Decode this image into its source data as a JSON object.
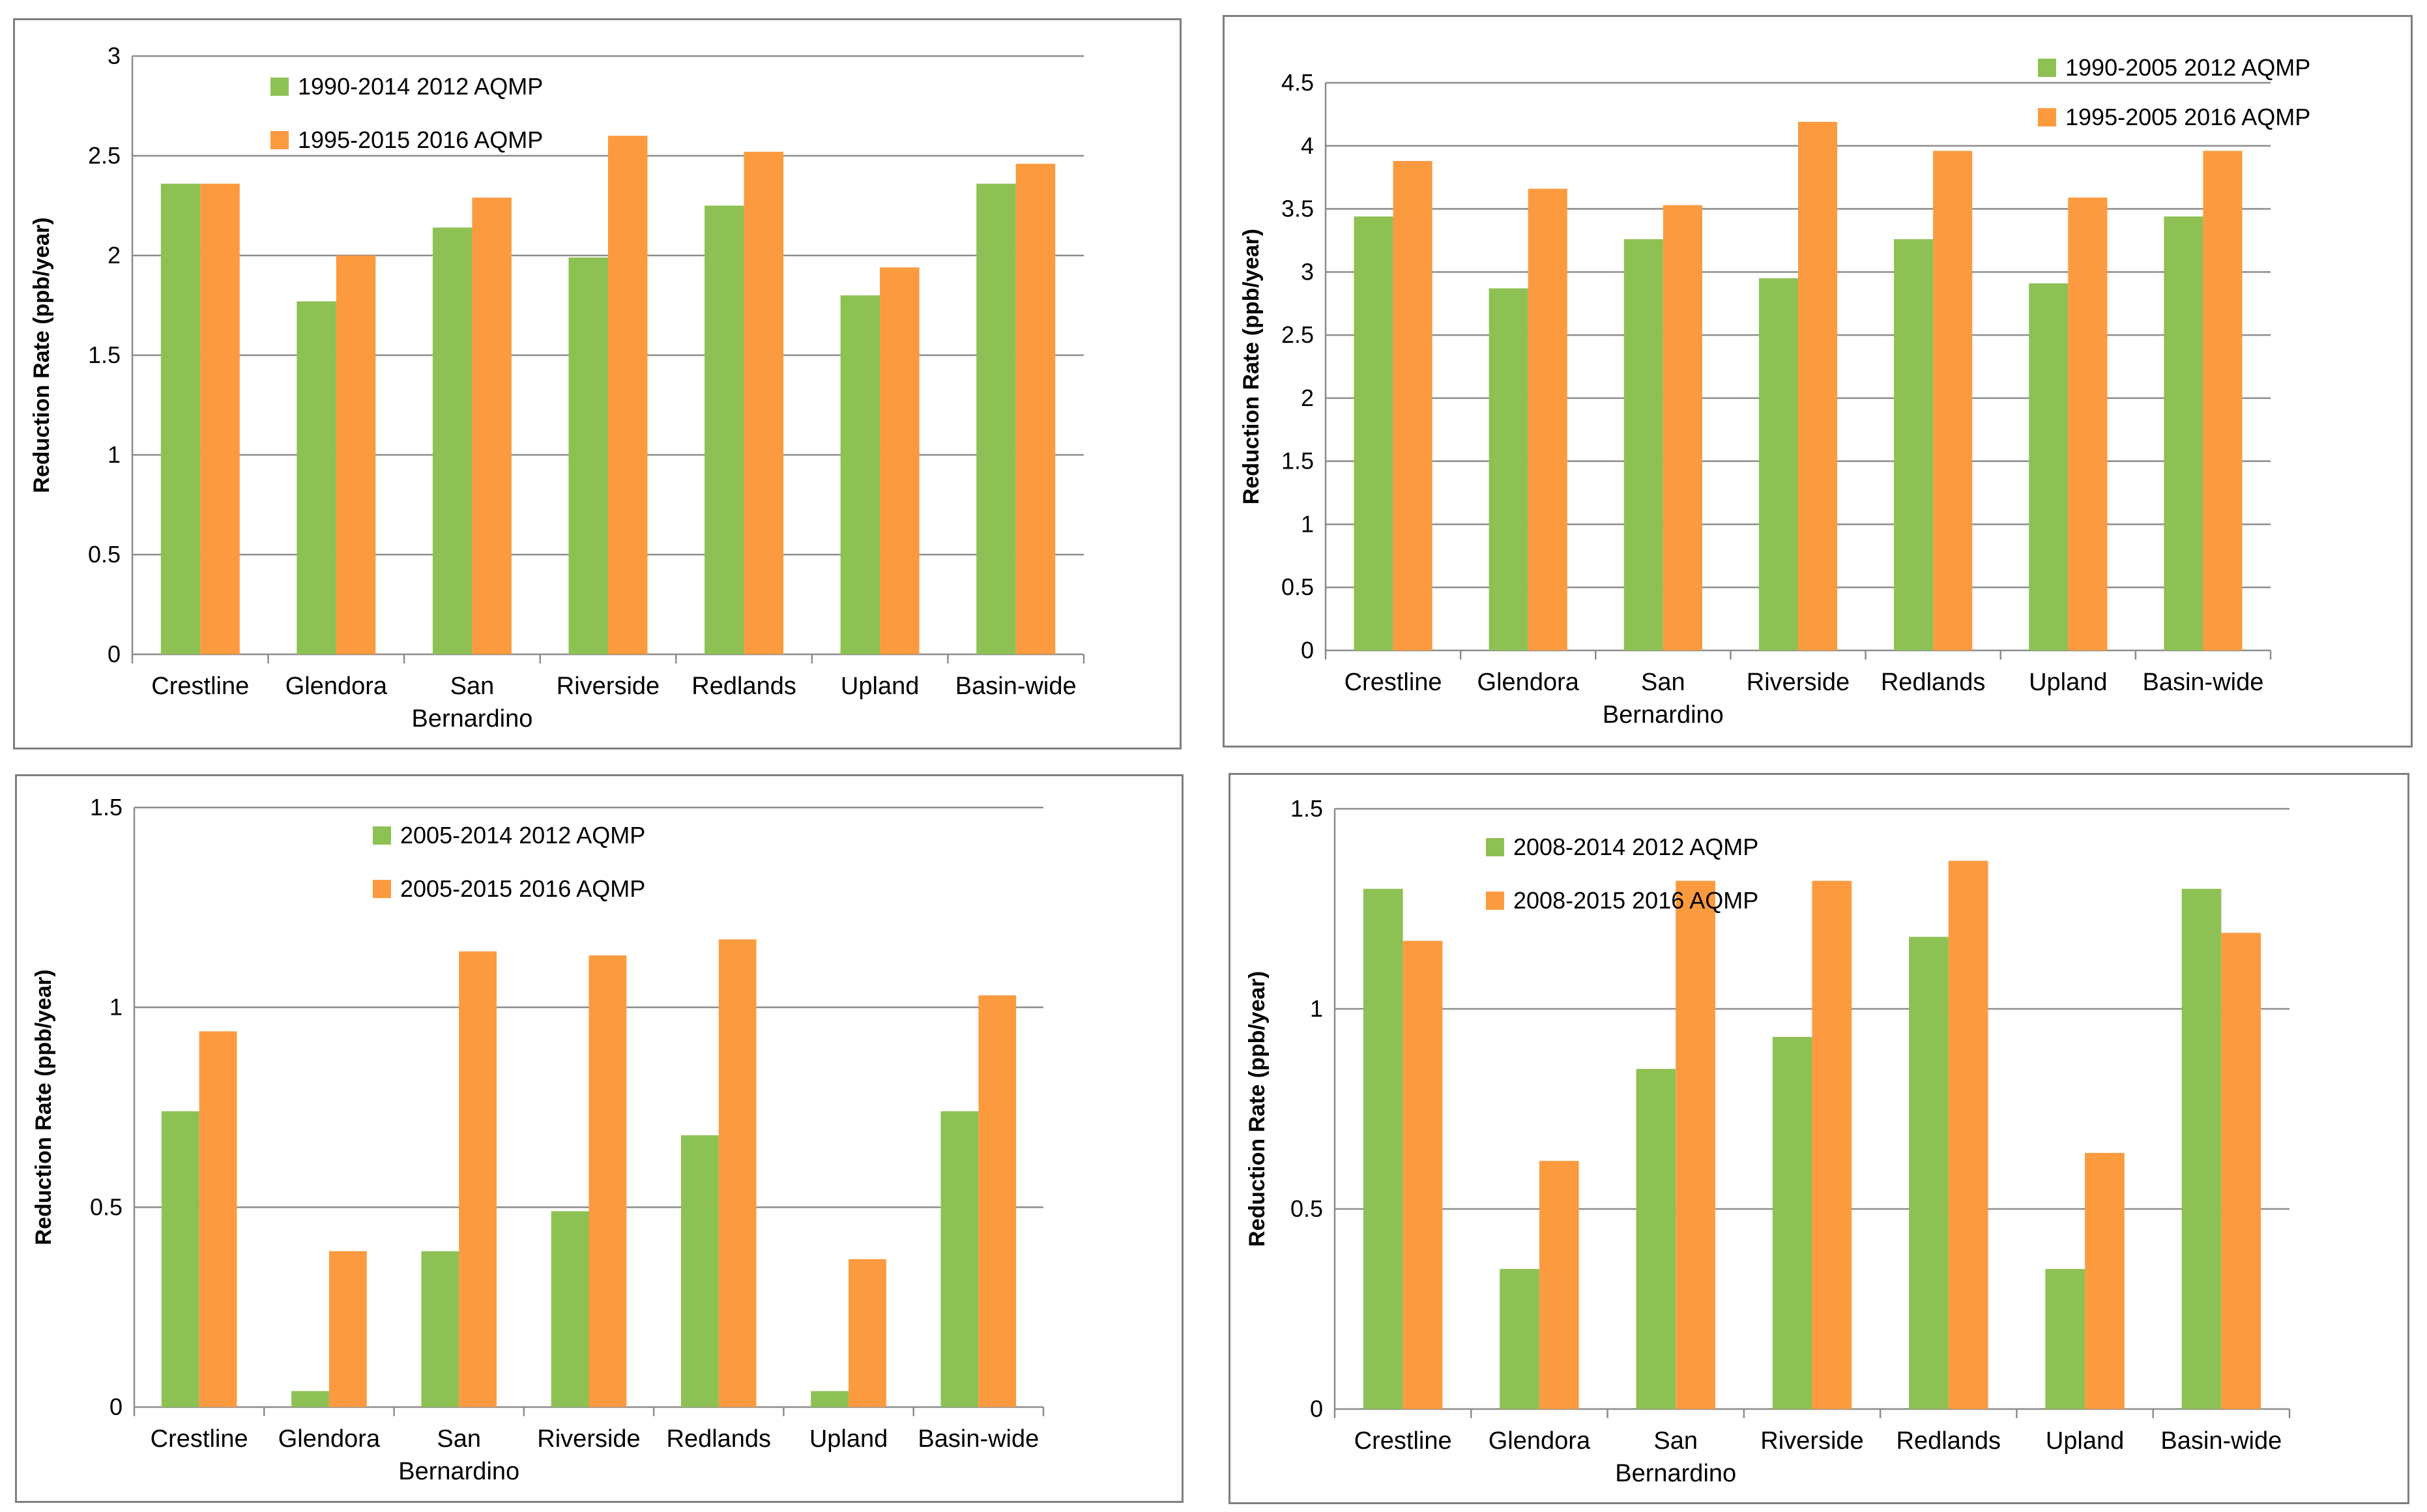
{
  "colors": {
    "green": "#8dc153",
    "orange": "#fc9a3f",
    "grid": "#8c8c8c"
  },
  "chart_data": [
    {
      "type": "bar",
      "title": "",
      "xlabel": "",
      "ylabel": "Reduction Rate (ppb/year)",
      "ylim": [
        0,
        3
      ],
      "yticks": [
        "0",
        "0.5",
        "1",
        "1.5",
        "2",
        "2.5",
        "3"
      ],
      "ytick_values": [
        0,
        0.5,
        1,
        1.5,
        2,
        2.5,
        3
      ],
      "categories": [
        [
          "Crestline"
        ],
        [
          "Glendora"
        ],
        [
          "San",
          "Bernardino"
        ],
        [
          "Riverside"
        ],
        [
          "Redlands"
        ],
        [
          "Upland"
        ],
        [
          "Basin-wide"
        ]
      ],
      "series": [
        {
          "name": "1990-2014 2012 AQMP",
          "color": "green",
          "values": [
            2.36,
            1.77,
            2.14,
            1.99,
            2.25,
            1.8,
            2.36
          ]
        },
        {
          "name": "1995-2015 2016 AQMP",
          "color": "orange",
          "values": [
            2.36,
            2.0,
            2.29,
            2.6,
            2.52,
            1.94,
            2.46
          ]
        }
      ],
      "legend_position": "top-left"
    },
    {
      "type": "bar",
      "title": "",
      "xlabel": "",
      "ylabel": "Reduction Rate (ppb/year)",
      "ylim": [
        0,
        4.5
      ],
      "yticks": [
        "0",
        "0.5",
        "1",
        "1.5",
        "2",
        "2.5",
        "3",
        "3.5",
        "4",
        "4.5"
      ],
      "ytick_values": [
        0,
        0.5,
        1,
        1.5,
        2,
        2.5,
        3,
        3.5,
        4,
        4.5
      ],
      "categories": [
        [
          "Crestline"
        ],
        [
          "Glendora"
        ],
        [
          "San",
          "Bernardino"
        ],
        [
          "Riverside"
        ],
        [
          "Redlands"
        ],
        [
          "Upland"
        ],
        [
          "Basin-wide"
        ]
      ],
      "series": [
        {
          "name": "1990-2005 2012 AQMP",
          "color": "green",
          "values": [
            3.44,
            2.87,
            3.26,
            2.95,
            3.26,
            2.91,
            3.44
          ]
        },
        {
          "name": "1995-2005 2016 AQMP",
          "color": "orange",
          "values": [
            3.88,
            3.66,
            3.53,
            4.19,
            3.96,
            3.59,
            3.96
          ]
        }
      ],
      "legend_position": "top-right"
    },
    {
      "type": "bar",
      "title": "",
      "xlabel": "",
      "ylabel": "Reduction Rate (ppb/year)",
      "ylim": [
        0,
        1.5
      ],
      "yticks": [
        "0",
        "0.5",
        "1",
        "1.5"
      ],
      "ytick_values": [
        0,
        0.5,
        1,
        1.5
      ],
      "categories": [
        [
          "Crestline"
        ],
        [
          "Glendora"
        ],
        [
          "San",
          "Bernardino"
        ],
        [
          "Riverside"
        ],
        [
          "Redlands"
        ],
        [
          "Upland"
        ],
        [
          "Basin-wide"
        ]
      ],
      "series": [
        {
          "name": "2005-2014 2012 AQMP",
          "color": "green",
          "values": [
            0.74,
            0.04,
            0.39,
            0.49,
            0.68,
            0.04,
            0.74
          ]
        },
        {
          "name": "2005-2015 2016 AQMP",
          "color": "orange",
          "values": [
            0.94,
            0.39,
            1.14,
            1.13,
            1.17,
            0.37,
            1.03
          ]
        }
      ],
      "legend_position": "top-center"
    },
    {
      "type": "bar",
      "title": "",
      "xlabel": "",
      "ylabel": "Reduction Rate (ppb/year)",
      "ylim": [
        0,
        1.5
      ],
      "yticks": [
        "0",
        "0.5",
        "1",
        "1.5"
      ],
      "ytick_values": [
        0,
        0.5,
        1,
        1.5
      ],
      "categories": [
        [
          "Crestline"
        ],
        [
          "Glendora"
        ],
        [
          "San",
          "Bernardino"
        ],
        [
          "Riverside"
        ],
        [
          "Redlands"
        ],
        [
          "Upland"
        ],
        [
          "Basin-wide"
        ]
      ],
      "series": [
        {
          "name": "2008-2014 2012 AQMP",
          "color": "green",
          "values": [
            1.3,
            0.35,
            0.85,
            0.93,
            1.18,
            0.35,
            1.3
          ]
        },
        {
          "name": "2008-2015 2016 AQMP",
          "color": "orange",
          "values": [
            1.17,
            0.62,
            1.32,
            1.32,
            1.37,
            0.64,
            1.19
          ]
        }
      ],
      "legend_position": "top-left"
    }
  ]
}
